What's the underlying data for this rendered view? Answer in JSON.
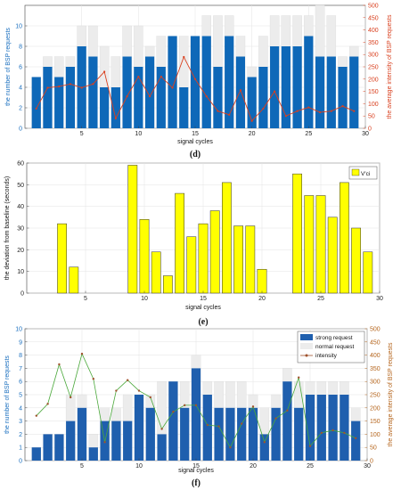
{
  "chart_data": [
    {
      "type": "bar",
      "panel_label": "(d)",
      "xlabel": "signal cycles",
      "ylabel": "the number of BSP requests",
      "ylabel_right": "the average intensity of BSP requests",
      "xlim": [
        0,
        30
      ],
      "ylim": [
        0,
        12
      ],
      "ylim_right": [
        0,
        500
      ],
      "x_ticks": [
        "5",
        "10",
        "15",
        "20",
        "25",
        "30"
      ],
      "y_ticks": [
        "0",
        "2",
        "4",
        "6",
        "8",
        "10"
      ],
      "y_ticks_right": [
        "0",
        "50",
        "100",
        "150",
        "200",
        "250",
        "300",
        "350",
        "400",
        "450",
        "500"
      ],
      "colors": {
        "front_bar": "#0e68b8",
        "back_bar": "#ececec",
        "line": "#d9401f",
        "right_axis": "#d9401f",
        "left_axis": "#1a6fbf"
      },
      "x": [
        1,
        2,
        3,
        4,
        5,
        6,
        7,
        8,
        9,
        10,
        11,
        12,
        13,
        14,
        15,
        16,
        17,
        18,
        19,
        20,
        21,
        22,
        23,
        24,
        25,
        26,
        27,
        28,
        29
      ],
      "series": [
        {
          "values": [
            5,
            6,
            5,
            6,
            8,
            7,
            4,
            4,
            7,
            6,
            7,
            6,
            9,
            4,
            9,
            9,
            6,
            9,
            7,
            5,
            6,
            8,
            8,
            8,
            9,
            7,
            7,
            6,
            7
          ]
        },
        {
          "values": [
            5,
            7,
            7,
            7,
            10,
            10,
            8,
            7,
            10,
            10,
            8,
            9,
            9,
            9,
            9,
            11,
            11,
            11,
            9,
            6,
            9,
            11,
            11,
            11,
            11,
            12,
            11,
            7,
            8
          ]
        },
        {
          "values": [
            80,
            165,
            170,
            180,
            165,
            180,
            230,
            40,
            130,
            210,
            130,
            210,
            165,
            290,
            200,
            130,
            70,
            55,
            155,
            30,
            80,
            150,
            50,
            70,
            85,
            65,
            70,
            90,
            70
          ]
        }
      ]
    },
    {
      "type": "bar",
      "panel_label": "(e)",
      "xlabel": "signal cycles",
      "ylabel": "the deviation from baseline (seconds)",
      "xlim": [
        0,
        30
      ],
      "ylim": [
        0,
        60
      ],
      "x_ticks": [
        "5",
        "10",
        "15",
        "20",
        "25",
        "30"
      ],
      "y_ticks": [
        "0",
        "10",
        "20",
        "30",
        "40",
        "50",
        "60"
      ],
      "legend": [
        "V'ci"
      ],
      "legend_position": "top-right",
      "colors": {
        "bar": "#ffff00",
        "edge": "#333333"
      },
      "x": [
        1,
        2,
        3,
        4,
        5,
        6,
        7,
        8,
        9,
        10,
        11,
        12,
        13,
        14,
        15,
        16,
        17,
        18,
        19,
        20,
        21,
        22,
        23,
        24,
        25,
        26,
        27,
        28,
        29
      ],
      "values": [
        0,
        0,
        32,
        12,
        0,
        0,
        0,
        0,
        59,
        34,
        19,
        8,
        46,
        26,
        32,
        38,
        51,
        31,
        31,
        11,
        0,
        0,
        55,
        45,
        45,
        35,
        51,
        30,
        19
      ]
    },
    {
      "type": "bar",
      "panel_label": "(f)",
      "xlabel": "signal cycles",
      "ylabel": "the number of BSP requests",
      "ylabel_right": "the average intensity of BSP requests",
      "xlim": [
        0,
        30
      ],
      "ylim": [
        0,
        10
      ],
      "ylim_right": [
        0,
        500
      ],
      "x_ticks": [
        "5",
        "10",
        "15",
        "20",
        "25",
        "30"
      ],
      "y_ticks": [
        "0",
        "1",
        "2",
        "3",
        "4",
        "5",
        "6",
        "7",
        "8",
        "9",
        "10"
      ],
      "y_ticks_right": [
        "0",
        "50",
        "100",
        "150",
        "200",
        "250",
        "300",
        "350",
        "400",
        "450",
        "500"
      ],
      "legend": [
        "strong request",
        "normal request",
        "intensity"
      ],
      "legend_position": "top-right",
      "colors": {
        "front_bar": "#1f5fae",
        "back_bar": "#ececec",
        "line": "#4aa83a",
        "marker": "#a0522d",
        "right_axis": "#b5651d",
        "left_axis": "#1a6fbf"
      },
      "x": [
        1,
        2,
        3,
        4,
        5,
        6,
        7,
        8,
        9,
        10,
        11,
        12,
        13,
        14,
        15,
        16,
        17,
        18,
        19,
        20,
        21,
        22,
        23,
        24,
        25,
        26,
        27,
        28,
        29
      ],
      "series": [
        {
          "name": "strong request",
          "values": [
            1,
            2,
            2,
            3,
            4,
            1,
            3,
            3,
            3,
            5,
            4,
            2,
            6,
            4,
            7,
            5,
            4,
            4,
            4,
            4,
            2,
            4,
            6,
            4,
            5,
            5,
            5,
            5,
            3
          ]
        },
        {
          "name": "normal request",
          "values": [
            1,
            2,
            2,
            5,
            5,
            2,
            4,
            4,
            5,
            5,
            5,
            6,
            6,
            6,
            8,
            6,
            6,
            6,
            6,
            5,
            4,
            5,
            7,
            6,
            6,
            6,
            6,
            6,
            4
          ]
        },
        {
          "name": "intensity",
          "values": [
            170,
            215,
            365,
            240,
            405,
            310,
            70,
            265,
            305,
            265,
            240,
            120,
            185,
            210,
            210,
            135,
            130,
            50,
            140,
            205,
            70,
            160,
            190,
            315,
            55,
            105,
            115,
            105,
            85
          ]
        }
      ]
    }
  ]
}
